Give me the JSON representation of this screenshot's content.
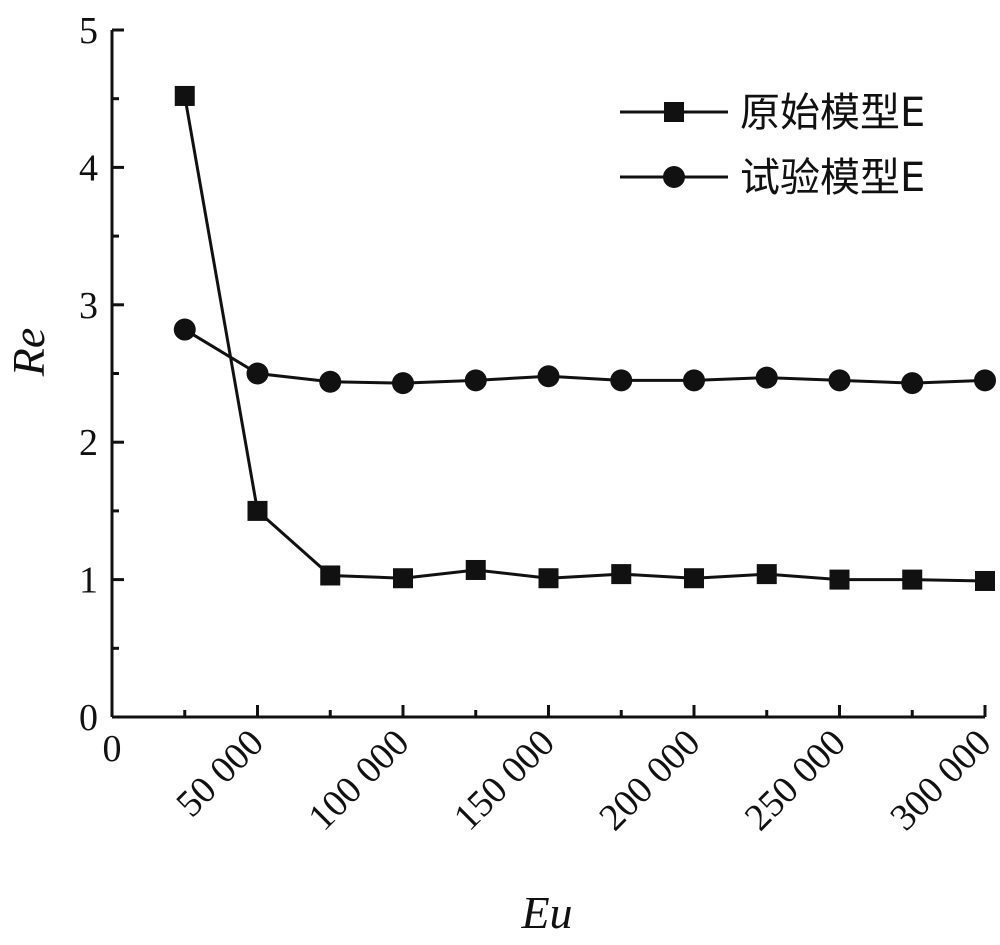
{
  "chart_data": {
    "type": "line",
    "xlabel": "Eu",
    "ylabel": "Re",
    "xlim": [
      0,
      300000
    ],
    "ylim": [
      0,
      5
    ],
    "x_ticks": [
      0,
      50000,
      100000,
      150000,
      200000,
      250000,
      300000
    ],
    "x_tick_labels": [
      "0",
      "50 000",
      "100 000",
      "150 000",
      "200 000",
      "250 000",
      "300 000"
    ],
    "y_ticks": [
      0,
      1,
      2,
      3,
      4,
      5
    ],
    "y_tick_labels": [
      "0",
      "1",
      "2",
      "3",
      "4",
      "5"
    ],
    "legend_position": "top-right",
    "grid": false,
    "x": [
      25000,
      50000,
      75000,
      100000,
      125000,
      150000,
      175000,
      200000,
      225000,
      250000,
      275000,
      300000
    ],
    "series": [
      {
        "name": "原始模型E",
        "marker": "square",
        "color": "#111111",
        "values": [
          4.52,
          1.5,
          1.03,
          1.01,
          1.07,
          1.01,
          1.04,
          1.01,
          1.04,
          1.0,
          1.0,
          0.99
        ]
      },
      {
        "name": "试验模型E",
        "marker": "circle",
        "color": "#111111",
        "values": [
          2.82,
          2.5,
          2.44,
          2.43,
          2.45,
          2.48,
          2.45,
          2.45,
          2.47,
          2.45,
          2.43,
          2.45
        ]
      }
    ]
  }
}
